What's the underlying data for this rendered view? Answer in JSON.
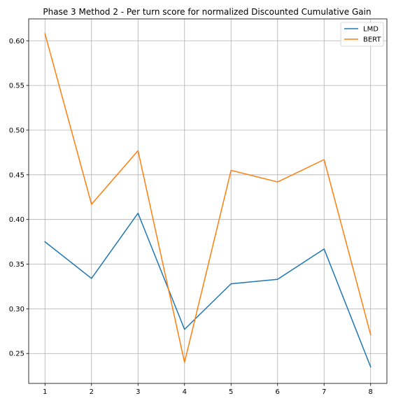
{
  "chart_data": {
    "type": "line",
    "title": "Phase 3 Method 2 - Per turn score for normalized Discounted Cumulative Gain",
    "xlabel": "",
    "ylabel": "",
    "x": [
      1,
      2,
      3,
      4,
      5,
      6,
      7,
      8
    ],
    "xticks": [
      "1",
      "2",
      "3",
      "4",
      "5",
      "6",
      "7",
      "8"
    ],
    "xlim": [
      0.65,
      8.35
    ],
    "ylim": [
      0.2165,
      0.6245
    ],
    "yticks": [
      0.25,
      0.3,
      0.35,
      0.4,
      0.45,
      0.5,
      0.55,
      0.6
    ],
    "ytick_labels": [
      "0.25",
      "0.30",
      "0.35",
      "0.40",
      "0.45",
      "0.50",
      "0.55",
      "0.60"
    ],
    "grid": true,
    "legend_position": "top-right",
    "series": [
      {
        "name": "LMD",
        "color": "#1f77b4",
        "values": [
          0.375,
          0.334,
          0.407,
          0.277,
          0.328,
          0.333,
          0.367,
          0.235
        ]
      },
      {
        "name": "BERT",
        "color": "#ff7f0e",
        "values": [
          0.608,
          0.417,
          0.477,
          0.24,
          0.455,
          0.442,
          0.467,
          0.271
        ]
      }
    ]
  }
}
